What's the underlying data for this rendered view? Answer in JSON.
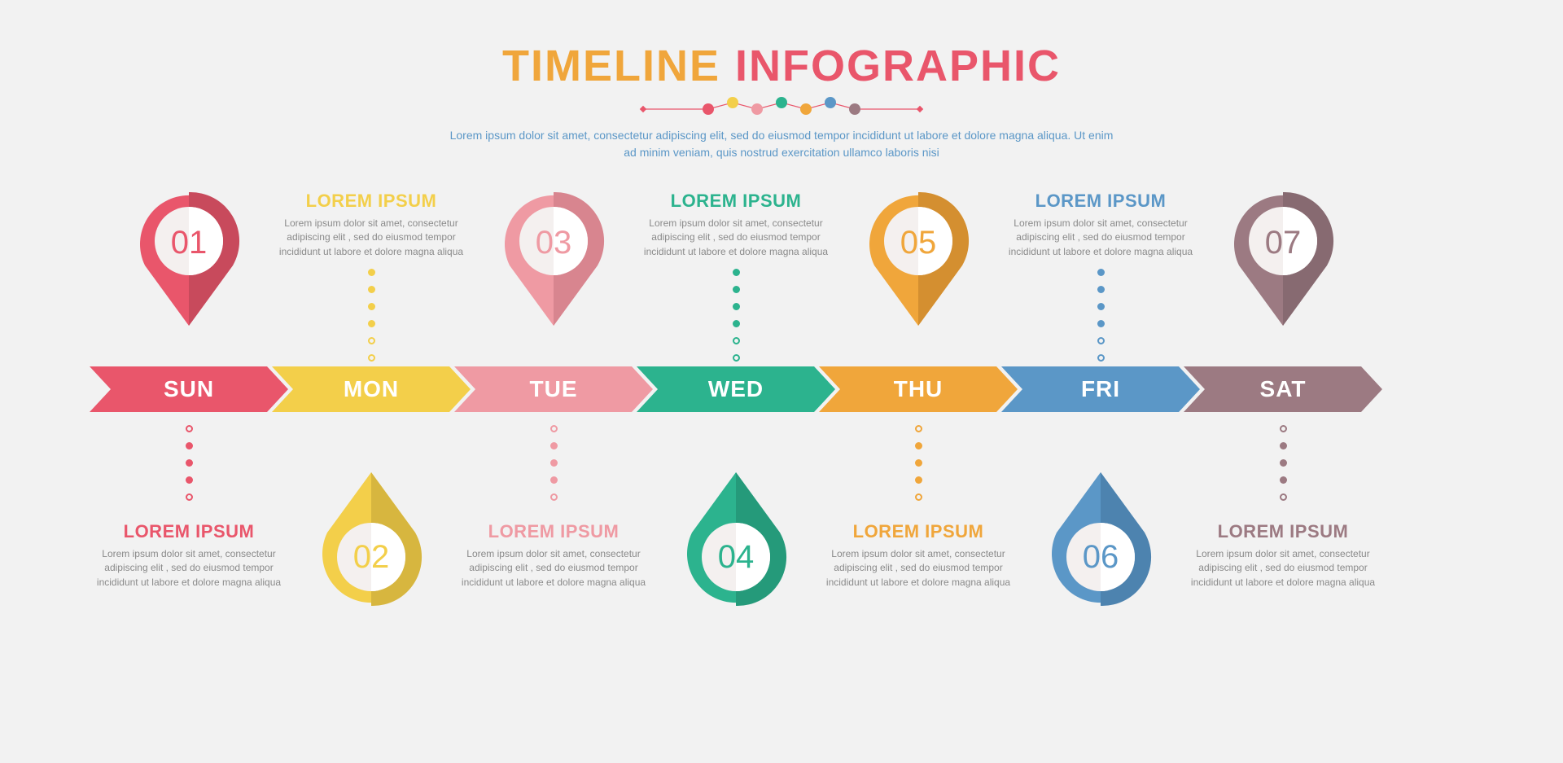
{
  "header": {
    "title_part1": "TIMELINE",
    "title_part2": "INFOGRAPHIC",
    "title_part1_color": "#f0a63b",
    "title_part2_color": "#e9566b",
    "subtitle": "Lorem ipsum dolor sit amet, consectetur adipiscing elit, sed do eiusmod tempor incididunt ut labore et dolore magna aliqua. Ut enim ad minim veniam, quis nostrud exercitation ullamco laboris nisi",
    "subtitle_color": "#5b97c7",
    "bead_colors": [
      "#e9566b",
      "#f3cf4a",
      "#ef9aa3",
      "#2cb38e",
      "#f0a63b",
      "#5b97c7",
      "#9c7a82"
    ],
    "bead_line_color": "#e9566b"
  },
  "layout": {
    "arrow_width": 244,
    "arrow_height": 56,
    "pin_width": 140,
    "pin_height": 170,
    "stage_width": 1700
  },
  "days": [
    {
      "idx": 0,
      "num": "01",
      "day": "SUN",
      "color": "#e9566b",
      "shade": "#c84a5c",
      "orient": "up",
      "block_heading": "LOREM IPSUM",
      "block_body": "Lorem ipsum dolor sit amet, consectetur adipiscing elit , sed do eiusmod tempor incididunt ut labore et dolore magna aliqua"
    },
    {
      "idx": 1,
      "num": "02",
      "day": "MON",
      "color": "#f3cf4a",
      "shade": "#d7b63f",
      "orient": "down",
      "block_heading": "LOREM IPSUM",
      "block_body": "Lorem ipsum dolor sit amet, consectetur adipiscing elit , sed do eiusmod tempor incididunt ut labore et dolore magna aliqua"
    },
    {
      "idx": 2,
      "num": "03",
      "day": "TUE",
      "color": "#ef9aa3",
      "shade": "#d8858f",
      "orient": "up",
      "block_heading": "LOREM IPSUM",
      "block_body": "Lorem ipsum dolor sit amet, consectetur adipiscing elit , sed do eiusmod tempor incididunt ut labore et dolore magna aliqua"
    },
    {
      "idx": 3,
      "num": "04",
      "day": "WED",
      "color": "#2cb38e",
      "shade": "#259a7a",
      "orient": "down",
      "block_heading": "LOREM IPSUM",
      "block_body": "Lorem ipsum dolor sit amet, consectetur adipiscing elit , sed do eiusmod tempor incididunt ut labore et dolore magna aliqua"
    },
    {
      "idx": 4,
      "num": "05",
      "day": "THU",
      "color": "#f0a63b",
      "shade": "#d48f30",
      "orient": "up",
      "block_heading": "LOREM IPSUM",
      "block_body": "Lorem ipsum dolor sit amet, consectetur adipiscing elit , sed do eiusmod tempor incididunt ut labore et dolore magna aliqua"
    },
    {
      "idx": 5,
      "num": "06",
      "day": "FRI",
      "color": "#5b97c7",
      "shade": "#4d83af",
      "orient": "down",
      "block_heading": "LOREM IPSUM",
      "block_body": "Lorem ipsum dolor sit amet, consectetur adipiscing elit , sed do eiusmod tempor incididunt ut labore et dolore magna aliqua"
    },
    {
      "idx": 6,
      "num": "07",
      "day": "SAT",
      "color": "#9c7a82",
      "shade": "#876a71",
      "orient": "up",
      "block_heading": "LOREM IPSUM",
      "block_body": "Lorem ipsum dolor sit amet, consectetur adipiscing elit , sed do eiusmod tempor incididunt ut labore et dolore magna aliqua"
    }
  ]
}
